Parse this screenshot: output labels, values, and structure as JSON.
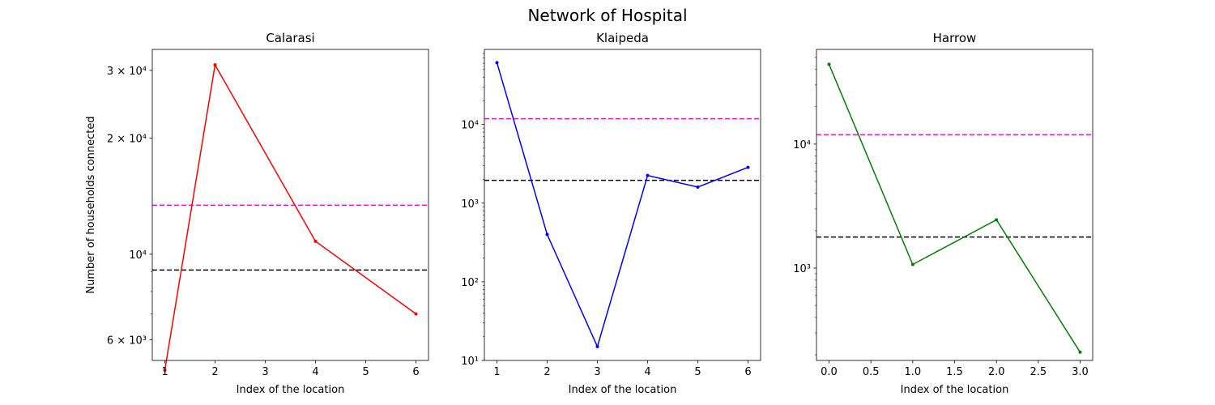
{
  "figure_title": "Network of Hospital",
  "chart_data": [
    {
      "type": "line",
      "title": "Calarasi",
      "xlabel": "Index of the location",
      "ylabel": "Number of households connected",
      "yscale": "log",
      "color": "#ff0000",
      "x": [
        1,
        2,
        4,
        6
      ],
      "y": [
        5000,
        31000,
        10800,
        7000
      ],
      "xlim": [
        0.75,
        6.25
      ],
      "ylim": [
        5300,
        34000
      ],
      "xticks": [
        1,
        2,
        3,
        4,
        5,
        6
      ],
      "xtick_labels": [
        "1",
        "2",
        "3",
        "4",
        "5",
        "6"
      ],
      "yticks": [
        6000,
        10000,
        20000,
        30000
      ],
      "ytick_labels": [
        "6 × 10³",
        "10⁴",
        "2 × 10⁴",
        "3 × 10⁴"
      ],
      "hlines": [
        {
          "value": 13400,
          "color": "#ff00ff",
          "style": "dashed"
        },
        {
          "value": 9100,
          "color": "#000000",
          "style": "dashed"
        }
      ]
    },
    {
      "type": "line",
      "title": "Klaipeda",
      "xlabel": "Index of the location",
      "ylabel": "",
      "yscale": "log",
      "color": "#0000ff",
      "x": [
        1,
        2,
        3,
        4,
        5,
        6
      ],
      "y": [
        61000,
        400,
        15,
        2250,
        1600,
        2850
      ],
      "xlim": [
        0.75,
        6.25
      ],
      "ylim": [
        10,
        90000
      ],
      "xticks": [
        1,
        2,
        3,
        4,
        5,
        6
      ],
      "xtick_labels": [
        "1",
        "2",
        "3",
        "4",
        "5",
        "6"
      ],
      "yticks": [
        10,
        100,
        1000,
        10000
      ],
      "ytick_labels": [
        "10¹",
        "10²",
        "10³",
        "10⁴"
      ],
      "hlines": [
        {
          "value": 11800,
          "color": "#ff00ff",
          "style": "dashed"
        },
        {
          "value": 1950,
          "color": "#000000",
          "style": "dashed"
        }
      ]
    },
    {
      "type": "line",
      "title": "Harrow",
      "xlabel": "Index of the location",
      "ylabel": "",
      "yscale": "log",
      "color": "#008000",
      "x": [
        0,
        1,
        2,
        3
      ],
      "y": [
        44000,
        1070,
        2450,
        210
      ],
      "xlim": [
        -0.15,
        3.15
      ],
      "ylim": [
        180,
        58000
      ],
      "xticks": [
        0,
        0.5,
        1,
        1.5,
        2,
        2.5,
        3
      ],
      "xtick_labels": [
        "0.0",
        "0.5",
        "1.0",
        "1.5",
        "2.0",
        "2.5",
        "3.0"
      ],
      "yticks": [
        1000,
        10000
      ],
      "ytick_labels": [
        "10³",
        "10⁴"
      ],
      "hlines": [
        {
          "value": 11900,
          "color": "#ff00ff",
          "style": "dashed"
        },
        {
          "value": 1780,
          "color": "#000000",
          "style": "dashed"
        }
      ]
    }
  ]
}
